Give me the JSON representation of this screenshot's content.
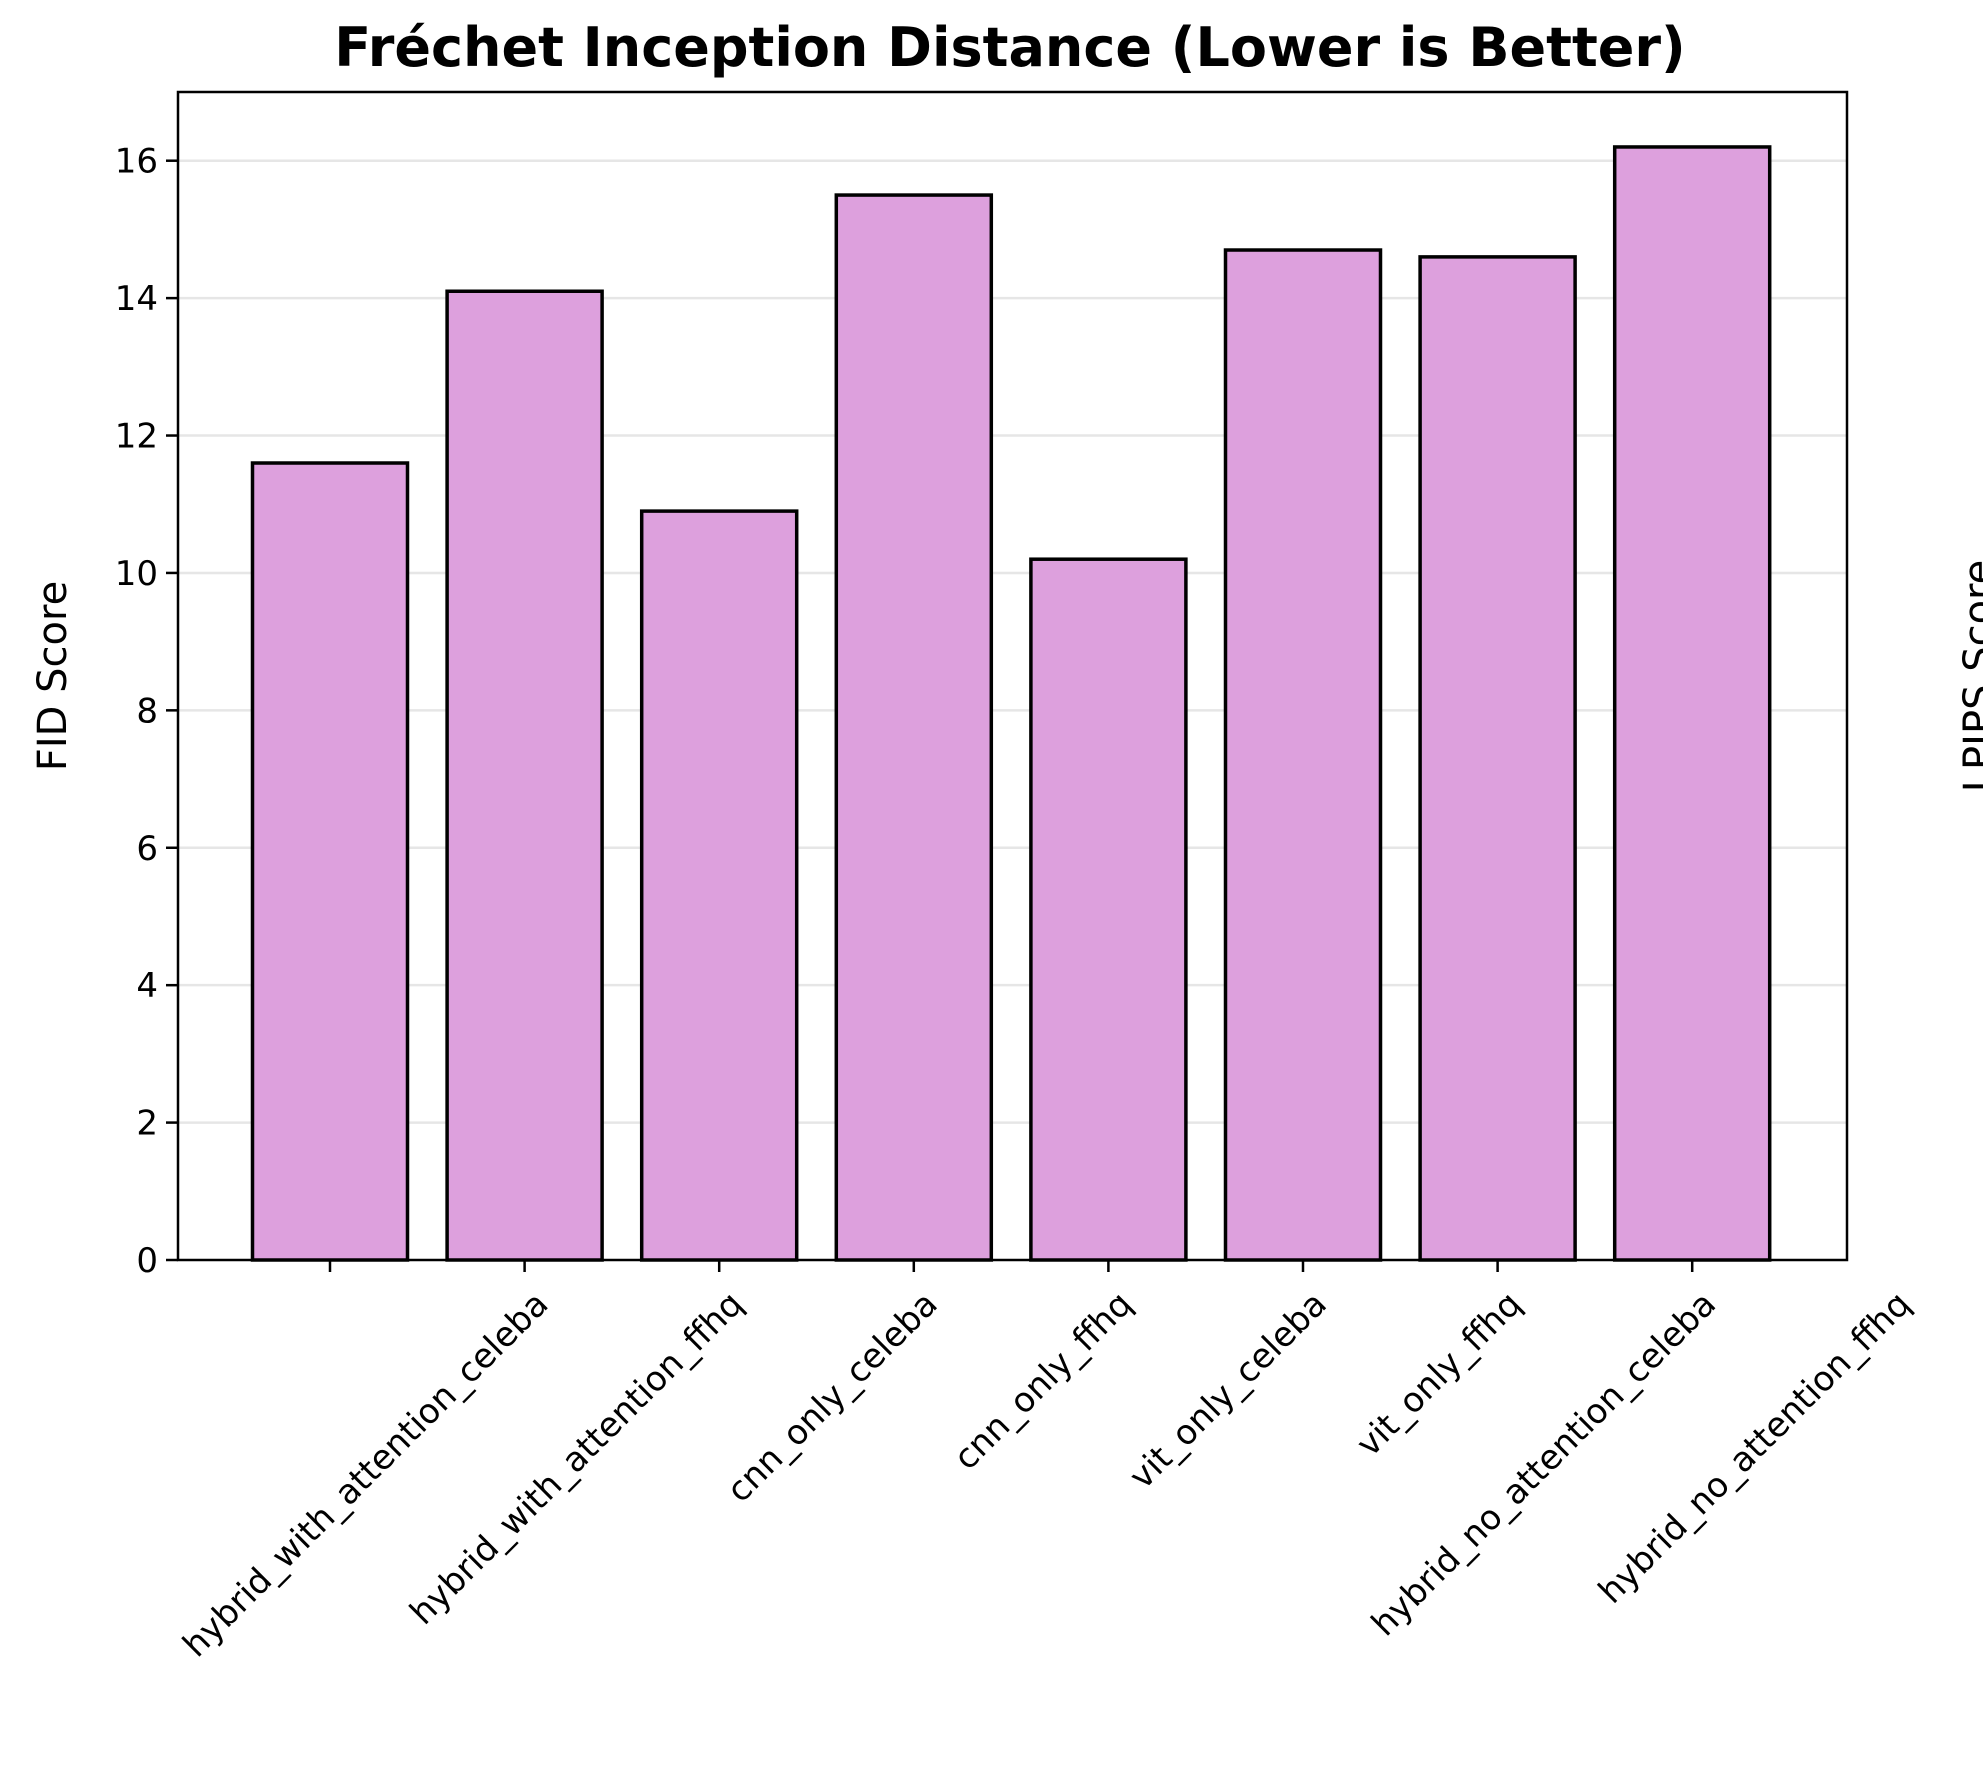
{
  "chart_data": {
    "type": "bar",
    "title": "Fréchet Inception Distance (Lower is Better)",
    "xlabel": "",
    "ylabel": "FID Score",
    "side_label_clipped": "LPIPS Score",
    "categories": [
      "hybrid_with_attention_celeba",
      "hybrid_with_attention_ffhq",
      "cnn_only_celeba",
      "cnn_only_ffhq",
      "vit_only_celeba",
      "vit_only_ffhq",
      "hybrid_no_attention_celeba",
      "hybrid_no_attention_ffhq"
    ],
    "values": [
      11.6,
      14.1,
      10.9,
      15.5,
      10.2,
      14.7,
      14.6,
      16.2
    ],
    "ylim": [
      0,
      17
    ],
    "yticks": [
      0,
      2,
      4,
      6,
      8,
      10,
      12,
      14,
      16
    ],
    "grid": "y",
    "legend": "none",
    "colors": {
      "bar_fill": "#dda0dd",
      "bar_edge": "#000000",
      "grid": "#e6e6e6"
    }
  }
}
